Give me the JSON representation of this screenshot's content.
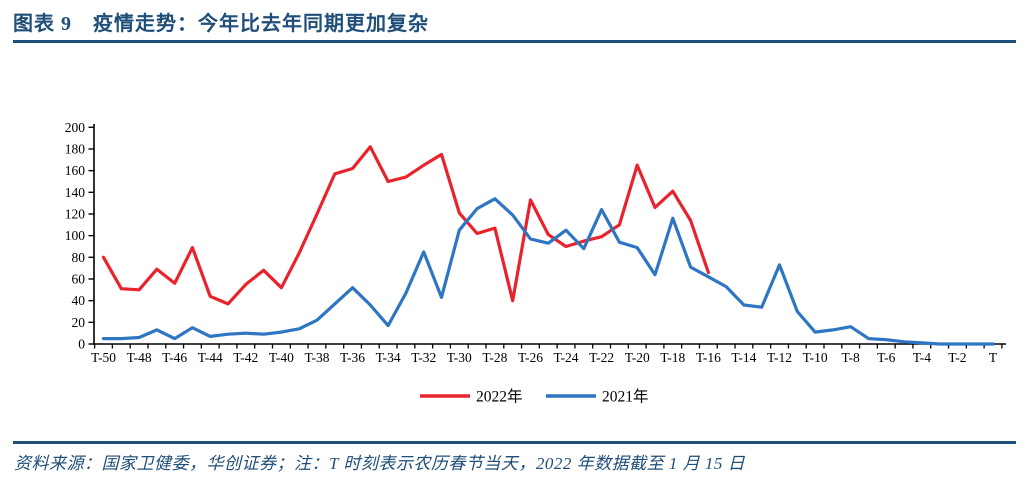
{
  "header": {
    "title": "图表 9　疫情走势：今年比去年同期更加复杂"
  },
  "footer": {
    "source_note": "资料来源：国家卫健委，华创证券；注：T 时刻表示农历春节当天，2022 年数据截至 1 月 15 日"
  },
  "colors": {
    "accent_navy": "#1f4e79",
    "series_2022": "#e9232b",
    "series_2021": "#2e75c4",
    "axis": "#000000"
  },
  "chart_data": {
    "type": "line",
    "title": "",
    "xlabel": "",
    "ylabel": "",
    "ylim": [
      0,
      200
    ],
    "y_tick_step": 20,
    "y_ticks": [
      0,
      20,
      40,
      60,
      80,
      100,
      120,
      140,
      160,
      180,
      200
    ],
    "grid": false,
    "legend_position": "bottom-center",
    "x_label_every": 2,
    "x_categories": [
      "T-50",
      "T-49",
      "T-48",
      "T-47",
      "T-46",
      "T-45",
      "T-44",
      "T-43",
      "T-42",
      "T-41",
      "T-40",
      "T-39",
      "T-38",
      "T-37",
      "T-36",
      "T-35",
      "T-34",
      "T-33",
      "T-32",
      "T-31",
      "T-30",
      "T-29",
      "T-28",
      "T-27",
      "T-26",
      "T-25",
      "T-24",
      "T-23",
      "T-22",
      "T-21",
      "T-20",
      "T-19",
      "T-18",
      "T-17",
      "T-16",
      "T-15",
      "T-14",
      "T-13",
      "T-12",
      "T-11",
      "T-10",
      "T-9",
      "T-8",
      "T-7",
      "T-6",
      "T-5",
      "T-4",
      "T-3",
      "T-2",
      "T-1",
      "T"
    ],
    "series": [
      {
        "name": "2022年",
        "color": "#e9232b",
        "values": [
          80,
          51,
          50,
          69,
          56,
          89,
          44,
          37,
          55,
          68,
          52,
          84,
          120,
          157,
          162,
          182,
          150,
          154,
          165,
          175,
          121,
          102,
          107,
          40,
          133,
          101,
          90,
          95,
          99,
          110,
          165,
          126,
          141,
          114,
          66
        ]
      },
      {
        "name": "2021年",
        "color": "#2e75c4",
        "values": [
          5,
          5,
          6,
          13,
          5,
          15,
          7,
          9,
          10,
          9,
          11,
          14,
          22,
          37,
          52,
          36,
          17,
          47,
          85,
          43,
          105,
          125,
          134,
          119,
          97,
          93,
          105,
          88,
          124,
          94,
          89,
          64,
          116,
          71,
          62,
          53,
          36,
          34,
          73,
          30,
          11,
          13,
          16,
          5,
          4,
          2,
          1,
          0,
          0,
          0,
          0
        ]
      }
    ]
  }
}
